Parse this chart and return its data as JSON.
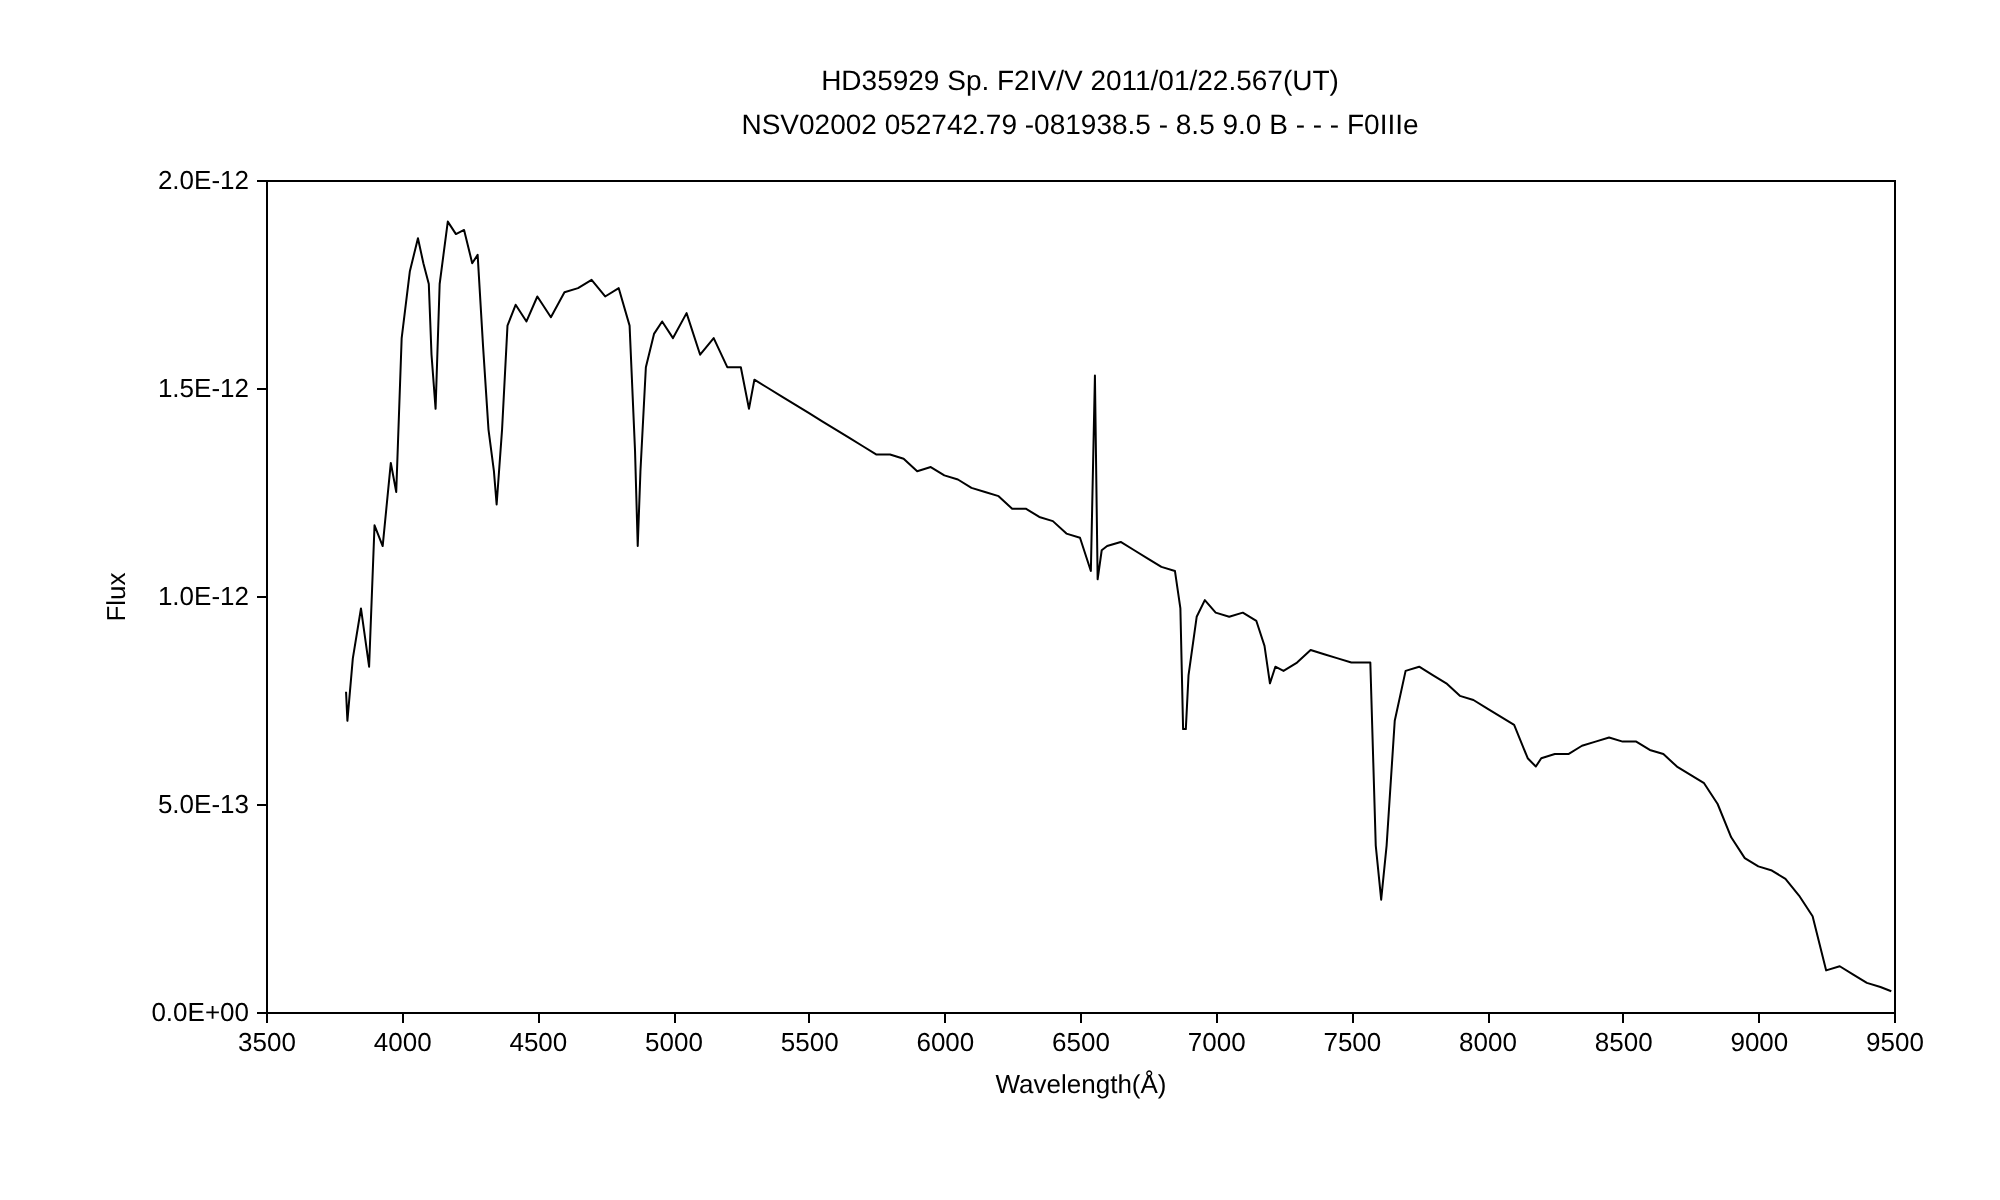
{
  "chart_data": {
    "type": "line",
    "title": "HD35929     Sp. F2IV/V    2011/01/22.567(UT)",
    "subtitle": "NSV02002 052742.79 -081938.5 - 8.5 9.0 B - - - F0IIIe",
    "xlabel": "Wavelength(Å)",
    "ylabel": "Flux",
    "xlim": [
      3500,
      9500
    ],
    "xticks": [
      3500,
      4000,
      4500,
      5000,
      5500,
      6000,
      6500,
      7000,
      7500,
      8000,
      8500,
      9000,
      9500
    ],
    "ylim": [
      0,
      2e-12
    ],
    "yticks": [
      {
        "value": 0,
        "label": "0.0E+00"
      },
      {
        "value": 5e-13,
        "label": "5.0E-13"
      },
      {
        "value": 1e-12,
        "label": "1.0E-12"
      },
      {
        "value": 1.5e-12,
        "label": "1.5E-12"
      },
      {
        "value": 2e-12,
        "label": "2.0E-12"
      }
    ],
    "grid": false,
    "marker": "none",
    "line_style": "solid",
    "series": [
      {
        "color": "#000000",
        "x": [
          3795,
          3800,
          3820,
          3850,
          3880,
          3900,
          3930,
          3960,
          3980,
          4000,
          4030,
          4060,
          4080,
          4100,
          4110,
          4125,
          4140,
          4170,
          4200,
          4230,
          4260,
          4280,
          4300,
          4320,
          4340,
          4350,
          4370,
          4390,
          4420,
          4460,
          4500,
          4550,
          4600,
          4650,
          4700,
          4750,
          4800,
          4840,
          4860,
          4870,
          4880,
          4900,
          4930,
          4960,
          5000,
          5050,
          5100,
          5150,
          5200,
          5250,
          5280,
          5300,
          5350,
          5400,
          5450,
          5500,
          5550,
          5600,
          5650,
          5700,
          5750,
          5800,
          5850,
          5900,
          5950,
          6000,
          6050,
          6100,
          6150,
          6200,
          6250,
          6300,
          6350,
          6400,
          6450,
          6500,
          6540,
          6555,
          6565,
          6580,
          6600,
          6650,
          6700,
          6750,
          6800,
          6850,
          6870,
          6880,
          6890,
          6900,
          6930,
          6960,
          7000,
          7050,
          7100,
          7150,
          7180,
          7200,
          7220,
          7250,
          7300,
          7350,
          7400,
          7450,
          7500,
          7570,
          7590,
          7610,
          7630,
          7660,
          7700,
          7750,
          7800,
          7850,
          7900,
          7950,
          8000,
          8050,
          8100,
          8150,
          8180,
          8200,
          8250,
          8300,
          8350,
          8400,
          8450,
          8500,
          8550,
          8600,
          8650,
          8700,
          8750,
          8800,
          8850,
          8900,
          8950,
          9000,
          9050,
          9100,
          9150,
          9200,
          9250,
          9300,
          9350,
          9400,
          9450,
          9490
        ],
        "values": [
          7.7e-13,
          7e-13,
          8.5e-13,
          9.7e-13,
          8.3e-13,
          1.17e-12,
          1.12e-12,
          1.32e-12,
          1.25e-12,
          1.62e-12,
          1.78e-12,
          1.86e-12,
          1.8e-12,
          1.75e-12,
          1.58e-12,
          1.45e-12,
          1.75e-12,
          1.9e-12,
          1.87e-12,
          1.88e-12,
          1.8e-12,
          1.82e-12,
          1.6e-12,
          1.4e-12,
          1.3e-12,
          1.22e-12,
          1.4e-12,
          1.65e-12,
          1.7e-12,
          1.66e-12,
          1.72e-12,
          1.67e-12,
          1.73e-12,
          1.74e-12,
          1.76e-12,
          1.72e-12,
          1.74e-12,
          1.65e-12,
          1.35e-12,
          1.12e-12,
          1.3e-12,
          1.55e-12,
          1.63e-12,
          1.66e-12,
          1.62e-12,
          1.68e-12,
          1.58e-12,
          1.62e-12,
          1.55e-12,
          1.55e-12,
          1.45e-12,
          1.52e-12,
          1.5e-12,
          1.48e-12,
          1.46e-12,
          1.44e-12,
          1.42e-12,
          1.4e-12,
          1.38e-12,
          1.36e-12,
          1.34e-12,
          1.34e-12,
          1.33e-12,
          1.3e-12,
          1.31e-12,
          1.29e-12,
          1.28e-12,
          1.26e-12,
          1.25e-12,
          1.24e-12,
          1.21e-12,
          1.21e-12,
          1.19e-12,
          1.18e-12,
          1.15e-12,
          1.14e-12,
          1.06e-12,
          1.53e-12,
          1.04e-12,
          1.11e-12,
          1.12e-12,
          1.13e-12,
          1.11e-12,
          1.09e-12,
          1.07e-12,
          1.06e-12,
          9.7e-13,
          6.8e-13,
          6.8e-13,
          8.1e-13,
          9.5e-13,
          9.9e-13,
          9.6e-13,
          9.5e-13,
          9.6e-13,
          9.4e-13,
          8.8e-13,
          7.9e-13,
          8.3e-13,
          8.2e-13,
          8.4e-13,
          8.7e-13,
          8.6e-13,
          8.5e-13,
          8.4e-13,
          8.4e-13,
          4e-13,
          2.7e-13,
          4e-13,
          7e-13,
          8.2e-13,
          8.3e-13,
          8.1e-13,
          7.9e-13,
          7.6e-13,
          7.5e-13,
          7.3e-13,
          7.1e-13,
          6.9e-13,
          6.1e-13,
          5.9e-13,
          6.1e-13,
          6.2e-13,
          6.2e-13,
          6.4e-13,
          6.5e-13,
          6.6e-13,
          6.5e-13,
          6.5e-13,
          6.3e-13,
          6.2e-13,
          5.9e-13,
          5.7e-13,
          5.5e-13,
          5e-13,
          4.2e-13,
          3.7e-13,
          3.5e-13,
          3.4e-13,
          3.2e-13,
          2.8e-13,
          2.3e-13,
          1e-13,
          1.1e-13,
          9e-14,
          7e-14,
          6e-14,
          5e-14
        ]
      }
    ]
  }
}
